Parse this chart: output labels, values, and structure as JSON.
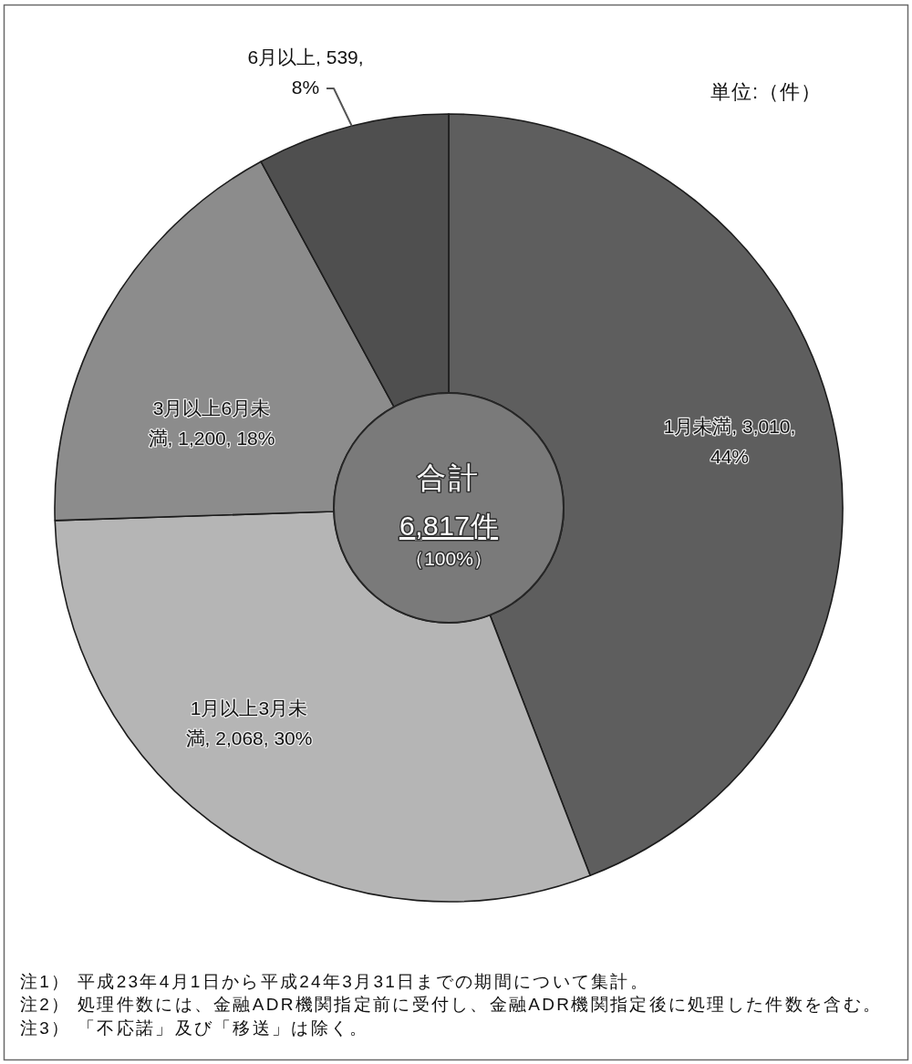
{
  "chart_data": {
    "type": "donut",
    "categories": [
      "1月未満",
      "1月以上3月未満",
      "3月以上6月未満",
      "6月以上"
    ],
    "values": [
      3010,
      2068,
      1200,
      539
    ],
    "colors": [
      "#5e5e5e",
      "#b5b5b5",
      "#8c8c8c",
      "#4f4f4f"
    ],
    "value_labels": [
      "3,010, 44%",
      "2,068, 30%",
      "1,200, 18%",
      "539, 8%"
    ],
    "annotations": [
      "単位:（件）",
      "合計",
      "6,817件",
      "（100%）",
      "注1） 平成23年4月1日から平成24年3月31日までの期間について集計。",
      "注2） 処理件数には、金融ADR機関指定前に受付し、金融ADR機関指定後に処理した件数を含む。",
      "注3） 「不応諾」及び「移送」は除く。"
    ]
  }
}
